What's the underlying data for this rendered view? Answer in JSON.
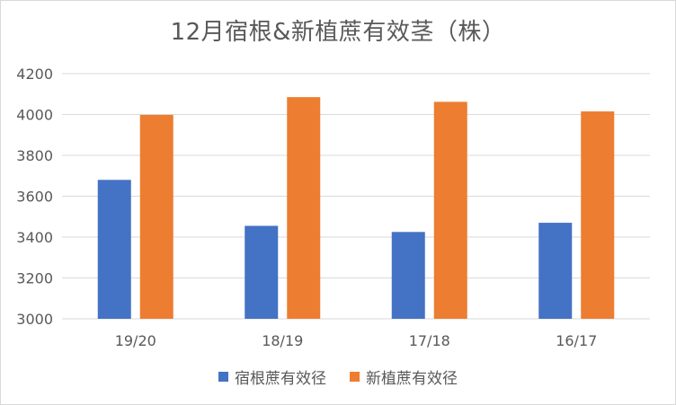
{
  "chart_data": {
    "type": "bar",
    "title": "12月宿根&新植蔗有效茎（株）",
    "categories": [
      "19/20",
      "18/19",
      "17/18",
      "16/17"
    ],
    "series": [
      {
        "name": "宿根蔗有效径",
        "color": "#4472C4",
        "values": [
          3680,
          3455,
          3425,
          3470
        ]
      },
      {
        "name": "新植蔗有效径",
        "color": "#ED7D31",
        "values": [
          3998,
          4085,
          4062,
          4015
        ]
      }
    ],
    "xlabel": "",
    "ylabel": "",
    "ylim": [
      3000,
      4200
    ],
    "yticks": [
      3000,
      3200,
      3400,
      3600,
      3800,
      4000,
      4200
    ],
    "grid": true,
    "legend_position": "bottom"
  }
}
